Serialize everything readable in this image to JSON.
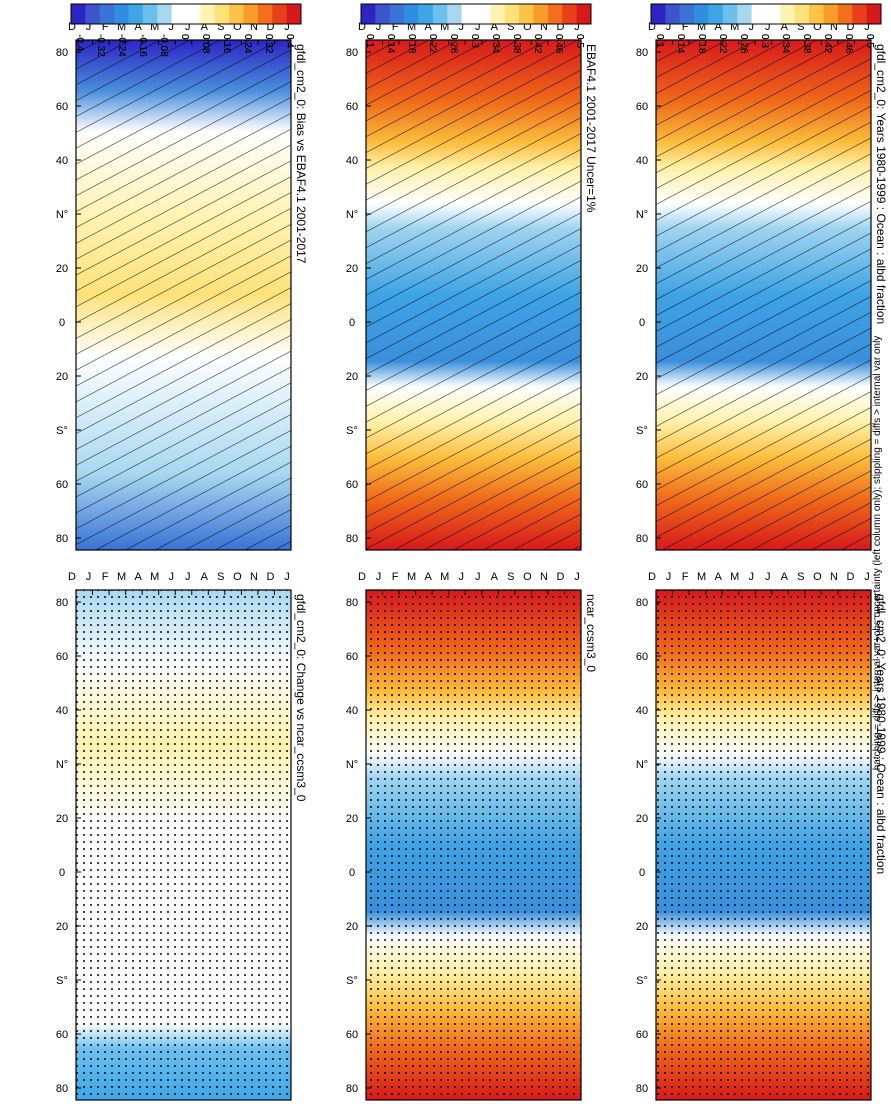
{
  "footnote": "hatching = diffs > internal var+obs uncertainty (left column only); stippling = diffs > internal var only",
  "months": [
    "D",
    "J",
    "F",
    "M",
    "A",
    "M",
    "J",
    "J",
    "A",
    "S",
    "O",
    "N",
    "D",
    "J"
  ],
  "lat_ticks": [
    "80",
    "60",
    "40",
    "N°",
    "20",
    "0",
    "20",
    "S°",
    "60",
    "80"
  ],
  "scale_abs": {
    "labels": [
      "0.5",
      "0.46",
      "0.42",
      "0.38",
      "0.34",
      "0.3",
      "0.26",
      "0.22",
      "0.18",
      "0.14",
      "0.1"
    ],
    "colors": [
      "#d7191c",
      "#e8401a",
      "#f2701c",
      "#f99d2a",
      "#fcc24a",
      "#fde27a",
      "#fff3b0",
      "#ffffff",
      "#ffffff",
      "#a8d8f0",
      "#6cc0ee",
      "#3fa6e6",
      "#2f8ee0",
      "#3a72d6",
      "#3d55cc",
      "#2b25c4"
    ]
  },
  "scale_diff": {
    "labels": [
      "0.4",
      "0.32",
      "0.24",
      "0.16",
      "0.08",
      "0",
      "-0.08",
      "-0.16",
      "-0.24",
      "-0.32",
      "-0.4"
    ],
    "colors": [
      "#d7191c",
      "#e8401a",
      "#f2701c",
      "#f99d2a",
      "#fcc24a",
      "#fde27a",
      "#fff3b0",
      "#ffffff",
      "#ffffff",
      "#a8d8f0",
      "#6cc0ee",
      "#3fa6e6",
      "#2f8ee0",
      "#3a72d6",
      "#3d55cc",
      "#2b25c4"
    ]
  },
  "chart_data": [
    {
      "type": "heatmap",
      "title": "gfdl_cm2_0: Years 1980-1999 : Ocean : albd fraction",
      "x": "months D..J",
      "y": "latitude 80N..80S",
      "ylim": [
        -80,
        80
      ],
      "hatching": true
    },
    {
      "type": "heatmap",
      "title": "gfdl_cm2_0: Years 1980-1999 : Ocean : albd fraction",
      "x": "months D..J",
      "y": "latitude 80N..80S",
      "ylim": [
        -80,
        80
      ],
      "stippling": true
    },
    {
      "type": "heatmap",
      "title": "EBAF4.1 2001-2017 Uncer=1%",
      "x": "months D..J",
      "y": "latitude 80N..80S",
      "ylim": [
        -80,
        80
      ],
      "hatching": true
    },
    {
      "type": "heatmap",
      "title": "ncar_ccsm3_0",
      "x": "months D..J",
      "y": "latitude 80N..80S",
      "ylim": [
        -80,
        80
      ],
      "stippling": true
    },
    {
      "type": "heatmap",
      "title": "gfdl_cm2_0: Bias vs EBAF4.1 2001-2017",
      "x": "months D..J",
      "y": "latitude 80N..80S",
      "ylim": [
        -80,
        80
      ],
      "hatching": true
    },
    {
      "type": "heatmap",
      "title": "gfdl_cm2_0: Change vs ncar_ccsm3_0",
      "x": "months D..J",
      "y": "latitude 80N..80S",
      "ylim": [
        -80,
        80
      ],
      "stippling": true
    }
  ]
}
